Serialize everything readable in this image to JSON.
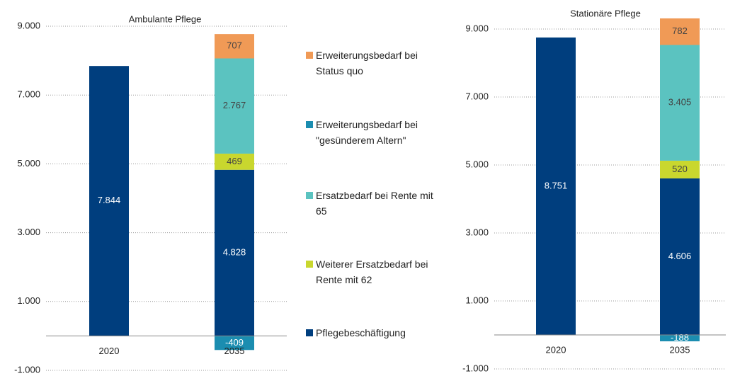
{
  "chart_data": [
    {
      "type": "stacked_bar",
      "title": "Ambulante Pflege",
      "categories": [
        "2020",
        "2035"
      ],
      "ylim": [
        -1000,
        9000
      ],
      "yticks": [
        {
          "value": -1000,
          "label": "-1.000"
        },
        {
          "value": 1000,
          "label": "1.000"
        },
        {
          "value": 3000,
          "label": "3.000"
        },
        {
          "value": 5000,
          "label": "5.000"
        },
        {
          "value": 7000,
          "label": "7.000"
        },
        {
          "value": 9000,
          "label": "9.000"
        }
      ],
      "grid": true,
      "legend": "right",
      "series": [
        {
          "name": "Erweiterungsbedarf bei Status quo",
          "color": "#f09a56",
          "values": [
            null,
            707
          ],
          "value_labels": [
            null,
            "707"
          ]
        },
        {
          "name": "Erweiterungsbedarf bei \"gesünderem Altern\"",
          "color": "#1b8db0",
          "values": [
            null,
            -409
          ],
          "value_labels": [
            null,
            "-409"
          ]
        },
        {
          "name": "Ersatzbedarf bei Rente mit 65",
          "color": "#5bc3c0",
          "values": [
            null,
            2767
          ],
          "value_labels": [
            null,
            "2.767"
          ]
        },
        {
          "name": "Weiterer Ersatzbedarf bei Rente mit 62",
          "color": "#c9d72e",
          "values": [
            null,
            469
          ],
          "value_labels": [
            null,
            "469"
          ]
        },
        {
          "name": "Pflegebeschäftigung",
          "color": "#003e7e",
          "values": [
            7844,
            4828
          ],
          "value_labels": [
            "7.844",
            "4.828"
          ]
        }
      ]
    },
    {
      "type": "stacked_bar",
      "title": "Stationäre Pflege",
      "categories": [
        "2020",
        "2035"
      ],
      "ylim": [
        -1000,
        9000
      ],
      "yticks": [
        {
          "value": -1000,
          "label": "-1.000"
        },
        {
          "value": 1000,
          "label": "1.000"
        },
        {
          "value": 3000,
          "label": "3.000"
        },
        {
          "value": 5000,
          "label": "5.000"
        },
        {
          "value": 7000,
          "label": "7.000"
        },
        {
          "value": 9000,
          "label": "9.000"
        }
      ],
      "grid": true,
      "series": [
        {
          "name": "Erweiterungsbedarf bei Status quo",
          "color": "#f09a56",
          "values": [
            null,
            782
          ],
          "value_labels": [
            null,
            "782"
          ]
        },
        {
          "name": "Erweiterungsbedarf bei \"gesünderem Altern\"",
          "color": "#1b8db0",
          "values": [
            null,
            -188
          ],
          "value_labels": [
            null,
            "-188"
          ]
        },
        {
          "name": "Ersatzbedarf bei Rente mit 65",
          "color": "#5bc3c0",
          "values": [
            null,
            3405
          ],
          "value_labels": [
            null,
            "3.405"
          ]
        },
        {
          "name": "Weiterer Ersatzbedarf bei Rente mit 62",
          "color": "#c9d72e",
          "values": [
            null,
            520
          ],
          "value_labels": [
            null,
            "520"
          ]
        },
        {
          "name": "Pflegebeschäftigung",
          "color": "#003e7e",
          "values": [
            8751,
            4606
          ],
          "value_labels": [
            "8.751",
            "4.606"
          ]
        }
      ]
    }
  ]
}
